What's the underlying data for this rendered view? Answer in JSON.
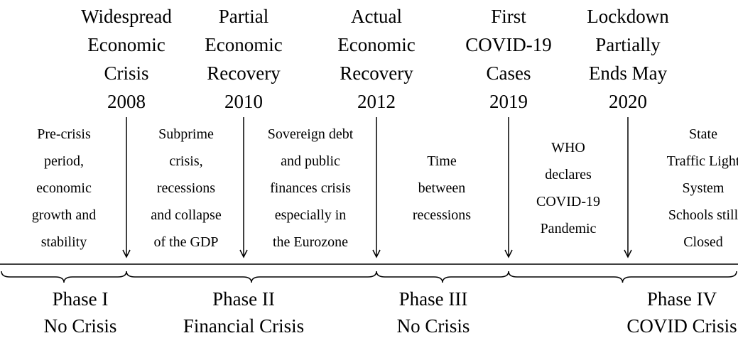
{
  "events": [
    {
      "lines": [
        "Widespread",
        "Economic",
        "Crisis"
      ],
      "year": "2008"
    },
    {
      "lines": [
        "Partial",
        "Economic",
        "Recovery"
      ],
      "year": "2010"
    },
    {
      "lines": [
        "Actual",
        "Economic",
        "Recovery"
      ],
      "year": "2012"
    },
    {
      "lines": [
        "First",
        "COVID-19",
        "Cases"
      ],
      "year": "2019"
    },
    {
      "lines": [
        "Lockdown",
        "Partially",
        "Ends May"
      ],
      "year": "2020"
    }
  ],
  "periods": [
    {
      "lines": [
        "Pre-crisis",
        "period,",
        "economic",
        "growth and",
        "stability"
      ]
    },
    {
      "lines": [
        "Subprime",
        "crisis,",
        "recessions",
        "and collapse",
        "of the GDP"
      ]
    },
    {
      "lines": [
        "Sovereign debt",
        "and public",
        "finances crisis",
        "especially in",
        "the Eurozone"
      ]
    },
    {
      "lines": [
        "Time",
        "between",
        "recessions"
      ]
    },
    {
      "lines": [
        "WHO",
        "declares",
        "COVID-19",
        "Pandemic"
      ]
    },
    {
      "lines": [
        "State",
        "Traffic Light",
        "System",
        "Schools still",
        "Closed"
      ]
    }
  ],
  "phases": [
    {
      "name": "Phase I",
      "label": "No Crisis"
    },
    {
      "name": "Phase II",
      "label": "Financial Crisis"
    },
    {
      "name": "Phase III",
      "label": "No Crisis"
    },
    {
      "name": "Phase IV",
      "label": "COVID Crisis"
    }
  ]
}
